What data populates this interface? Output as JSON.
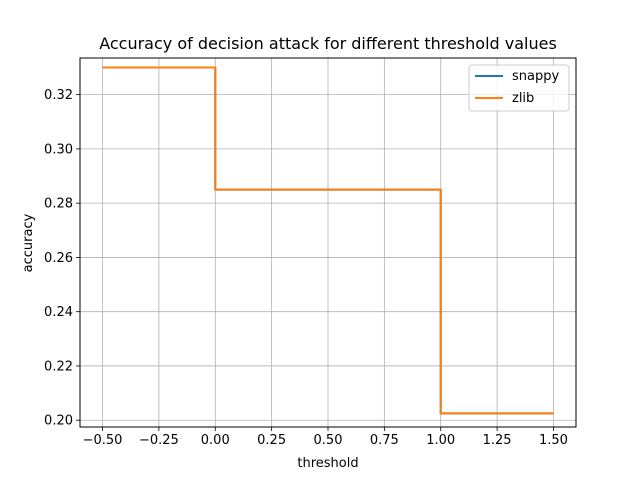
{
  "chart_data": {
    "type": "line",
    "title": "Accuracy of decision attack for different threshold values",
    "xlabel": "threshold",
    "ylabel": "accuracy",
    "xlim": [
      -0.6,
      1.6
    ],
    "ylim": [
      0.1975,
      0.3335
    ],
    "xticks": [
      -0.5,
      -0.25,
      0.0,
      0.25,
      0.5,
      0.75,
      1.0,
      1.25,
      1.5
    ],
    "xtick_labels": [
      "−0.50",
      "−0.25",
      "0.00",
      "0.25",
      "0.50",
      "0.75",
      "1.00",
      "1.25",
      "1.50"
    ],
    "yticks": [
      0.2,
      0.22,
      0.24,
      0.26,
      0.28,
      0.3,
      0.32
    ],
    "ytick_labels": [
      "0.20",
      "0.22",
      "0.24",
      "0.26",
      "0.28",
      "0.30",
      "0.32"
    ],
    "grid": true,
    "legend_position": "top-right",
    "series": [
      {
        "name": "snappy",
        "color": "#1f77b4",
        "x": [
          -0.5,
          0.0,
          0.0,
          1.0,
          1.0,
          1.5
        ],
        "y": [
          0.33,
          0.33,
          0.285,
          0.285,
          0.2025,
          0.2025
        ]
      },
      {
        "name": "zlib",
        "color": "#ff7f0e",
        "x": [
          -0.5,
          0.0,
          0.0,
          1.0,
          1.0,
          1.5
        ],
        "y": [
          0.33,
          0.33,
          0.285,
          0.285,
          0.2025,
          0.2025
        ]
      }
    ]
  }
}
